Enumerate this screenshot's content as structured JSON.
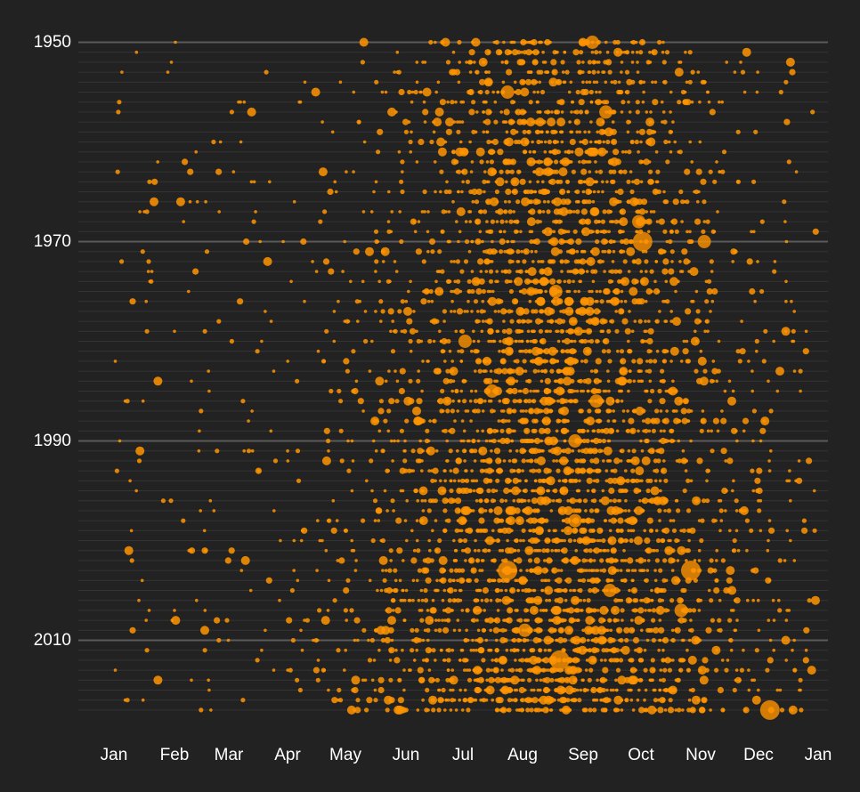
{
  "chart_data": {
    "type": "scatter",
    "title": "",
    "xlabel": "",
    "ylabel": "",
    "x_tick_labels": [
      "Jan",
      "Feb",
      "Mar",
      "Apr",
      "May",
      "Jun",
      "Jul",
      "Aug",
      "Sep",
      "Oct",
      "Nov",
      "Dec",
      "Jan"
    ],
    "y_tick_labels": [
      "1950",
      "1970",
      "1990",
      "2010"
    ],
    "y_range": [
      1950,
      2017
    ],
    "x_range_days": [
      1,
      366
    ],
    "y_inverted": true,
    "grid": "horizontal line per year; major lines every 20 years",
    "marker_color": "#ff9400",
    "background_color": "#222222",
    "notable_points": [
      {
        "year": 1950,
        "day": 249,
        "size": "large"
      },
      {
        "year": 1955,
        "day": 205,
        "size": "large"
      },
      {
        "year": 1957,
        "day": 256,
        "size": "large"
      },
      {
        "year": 1968,
        "day": 273,
        "size": "large"
      },
      {
        "year": 1970,
        "day": 275,
        "size": "very large"
      },
      {
        "year": 1970,
        "day": 307,
        "size": "large"
      },
      {
        "year": 1975,
        "day": 230,
        "size": "large"
      },
      {
        "year": 1980,
        "day": 183,
        "size": "large"
      },
      {
        "year": 1985,
        "day": 197,
        "size": "large"
      },
      {
        "year": 1986,
        "day": 251,
        "size": "large"
      },
      {
        "year": 1990,
        "day": 240,
        "size": "large"
      },
      {
        "year": 1998,
        "day": 240,
        "size": "large"
      },
      {
        "year": 2003,
        "day": 205,
        "size": "very large"
      },
      {
        "year": 2003,
        "day": 300,
        "size": "very large"
      },
      {
        "year": 2005,
        "day": 258,
        "size": "large"
      },
      {
        "year": 2007,
        "day": 295,
        "size": "large"
      },
      {
        "year": 2009,
        "day": 214,
        "size": "large"
      },
      {
        "year": 2012,
        "day": 232,
        "size": "very large"
      },
      {
        "year": 2017,
        "day": 341,
        "size": "very large"
      }
    ],
    "season_note": "storms concentrated between June and October with peak activity August to September"
  }
}
